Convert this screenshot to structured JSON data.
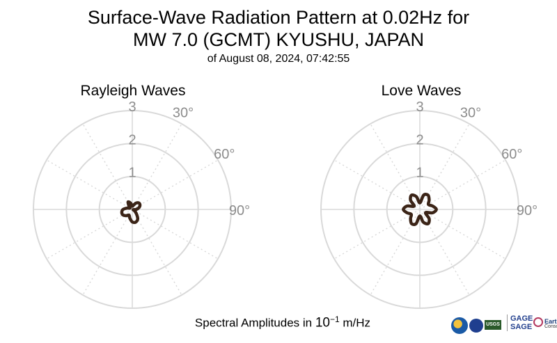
{
  "title_line1": "Surface-Wave Radiation Pattern at 0.02Hz for",
  "title_line2": "MW 7.0 (GCMT) KYUSHU, JAPAN",
  "subtitle": "of August 08, 2024, 07:42:55",
  "footnote_prefix": "Spectral Amplitudes in ",
  "footnote_power_base": "10",
  "footnote_power_exp": "−1",
  "footnote_suffix": " m/Hz",
  "logos": {
    "nsf_icon": "nsf-logo-icon",
    "nasa_icon": "nasa-logo-icon",
    "usgs_text": "USGS",
    "gage": "GAGE",
    "sage": "SAGE",
    "earthscope": "EarthScope",
    "earthscope_sub": "Consortium"
  },
  "colors": {
    "pattern": "#3b2417",
    "grid": "#d9d9d9",
    "label": "#8c8c8c"
  },
  "chart_data": [
    {
      "type": "polar-line",
      "title": "Rayleigh Waves",
      "r_ticks": [
        1,
        2,
        3
      ],
      "rlim": [
        0,
        3
      ],
      "angle_ticks": [
        "30°",
        "60°",
        "90°"
      ],
      "angle_direction": "clockwise-from-north",
      "series": [
        {
          "theta_deg": [
            0,
            15,
            30,
            45,
            60,
            75,
            90,
            105,
            120,
            135,
            150,
            165,
            180,
            195,
            210,
            225,
            240,
            255,
            270,
            285,
            300,
            315,
            330,
            345
          ],
          "r": [
            0.1,
            0.13,
            0.22,
            0.28,
            0.27,
            0.21,
            0.12,
            0.03,
            0.07,
            0.17,
            0.33,
            0.4,
            0.38,
            0.28,
            0.2,
            0.27,
            0.33,
            0.33,
            0.28,
            0.16,
            0.08,
            0.14,
            0.26,
            0.2
          ]
        }
      ]
    },
    {
      "type": "polar-line",
      "title": "Love Waves",
      "r_ticks": [
        1,
        2,
        3
      ],
      "rlim": [
        0,
        3
      ],
      "angle_ticks": [
        "30°",
        "60°",
        "90°"
      ],
      "angle_direction": "clockwise-from-north",
      "series": [
        {
          "theta_deg": [
            0,
            15,
            30,
            45,
            60,
            75,
            90,
            105,
            120,
            135,
            150,
            165,
            180,
            195,
            210,
            225,
            240,
            255,
            270,
            285,
            300,
            315,
            330,
            345
          ],
          "r": [
            0.2,
            0.45,
            0.5,
            0.4,
            0.3,
            0.4,
            0.5,
            0.4,
            0.2,
            0.4,
            0.5,
            0.4,
            0.2,
            0.45,
            0.5,
            0.4,
            0.3,
            0.4,
            0.5,
            0.4,
            0.2,
            0.4,
            0.5,
            0.4
          ]
        }
      ]
    }
  ]
}
